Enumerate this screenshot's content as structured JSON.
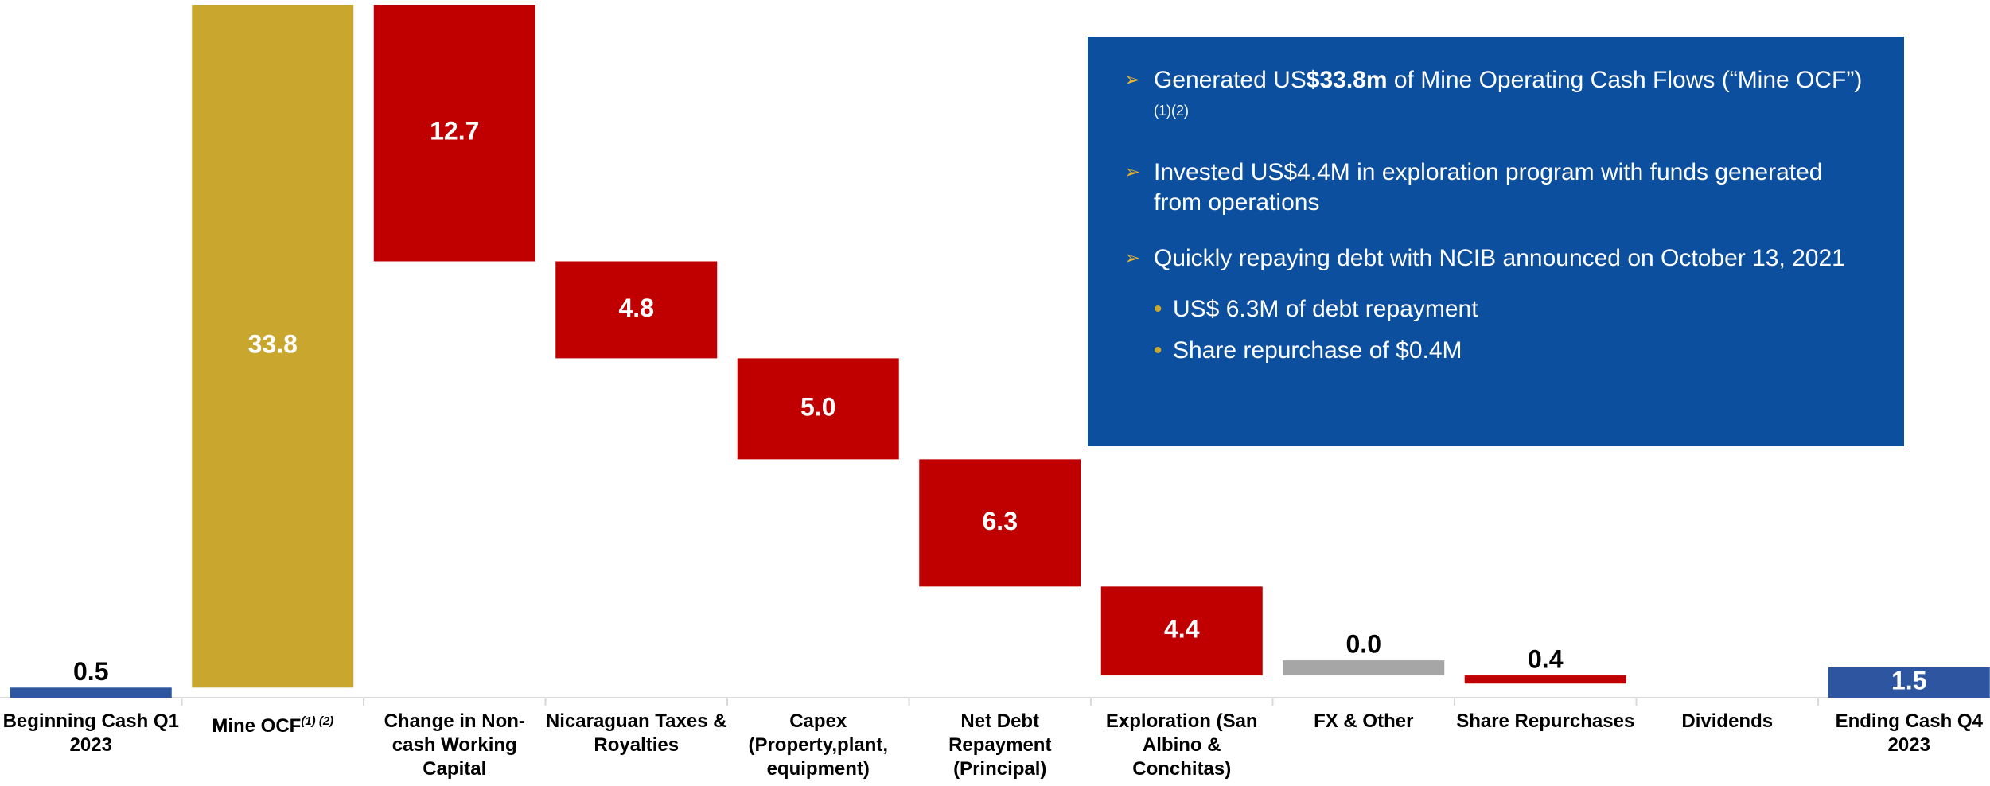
{
  "chart_data": {
    "type": "waterfall",
    "categories": [
      "Beginning Cash Q1 2023",
      "Mine OCF",
      "Change in Non-cash Working Capital",
      "Nicaraguan Taxes & Royalties",
      "Capex (Property,plant, equipment)",
      "Net Debt Repayment (Principal)",
      "Exploration (San Albino & Conchitas)",
      "FX & Other",
      "Share Repurchases",
      "Dividends",
      "Ending Cash Q4 2023"
    ],
    "category_superscripts": [
      null,
      "(1) (2)",
      null,
      null,
      null,
      null,
      null,
      null,
      null,
      null,
      null
    ],
    "values": [
      0.5,
      33.8,
      12.7,
      4.8,
      5.0,
      6.3,
      4.4,
      0.0,
      0.4,
      null,
      1.5
    ],
    "value_labels": [
      "0.5",
      "33.8",
      "12.7",
      "4.8",
      "5.0",
      "6.3",
      "4.4",
      "0.0",
      "0.4",
      null,
      "1.5"
    ],
    "measures": [
      "total",
      "increase",
      "decrease",
      "decrease",
      "decrease",
      "decrease",
      "decrease",
      "decrease",
      "decrease",
      "decrease",
      "total"
    ],
    "colors": [
      "#2e56a0",
      "#c9a72e",
      "#c00000",
      "#c00000",
      "#c00000",
      "#c00000",
      "#c00000",
      "#a6a6a6",
      "#c00000",
      "#c00000",
      "#2e56a0"
    ],
    "ylim": [
      0,
      34.3
    ],
    "annotations": {
      "bullets": [
        {
          "before": "Generated US",
          "bold": "$33.8m",
          "after": " of Mine Operating Cash Flows (“Mine OCF”)",
          "sup": "(1)(2)"
        },
        {
          "text": "Invested US$4.4M in exploration program with funds generated from operations"
        },
        {
          "text": "Quickly repaying debt with NCIB announced on October 13, 2021"
        }
      ],
      "sub_bullets": [
        "US$ 6.3M of debt repayment",
        "Share repurchase of $0.4M"
      ]
    }
  }
}
